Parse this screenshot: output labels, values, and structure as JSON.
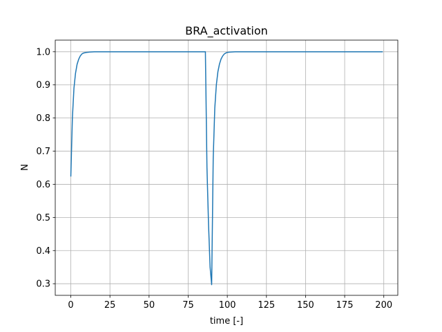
{
  "chart_data": {
    "type": "line",
    "title": "BRA_activation",
    "xlabel": "time [-]",
    "ylabel": "N",
    "xlim": [
      -9.95,
      208.95
    ],
    "ylim": [
      0.2649,
      1.0351
    ],
    "xticks": [
      0,
      25,
      50,
      75,
      100,
      125,
      150,
      175,
      200
    ],
    "xtick_labels": [
      "0",
      "25",
      "50",
      "75",
      "100",
      "125",
      "150",
      "175",
      "200"
    ],
    "yticks": [
      0.3,
      0.4,
      0.5,
      0.6,
      0.7,
      0.8,
      0.9,
      1.0
    ],
    "ytick_labels": [
      "0.3",
      "0.4",
      "0.5",
      "0.6",
      "0.7",
      "0.8",
      "0.9",
      "1.0"
    ],
    "grid": true,
    "line_color": "#1f77b4",
    "series": [
      {
        "x": [
          0,
          1,
          2,
          3,
          4,
          5,
          6,
          7,
          8,
          10,
          12,
          15,
          20,
          40,
          60,
          80,
          85,
          86,
          87,
          88,
          89,
          90,
          91,
          92,
          93,
          94,
          95,
          96,
          97,
          98,
          99,
          100,
          102,
          105,
          110,
          150,
          199
        ],
        "y": [
          0.625,
          0.8,
          0.89,
          0.935,
          0.962,
          0.977,
          0.987,
          0.993,
          0.996,
          0.998,
          0.999,
          1.0,
          1.0,
          1.0,
          1.0,
          1.0,
          1.0,
          1.0,
          0.65,
          0.48,
          0.35,
          0.297,
          0.68,
          0.83,
          0.9,
          0.94,
          0.963,
          0.978,
          0.987,
          0.993,
          0.996,
          0.998,
          0.999,
          1.0,
          1.0,
          1.0,
          1.0
        ]
      }
    ]
  }
}
